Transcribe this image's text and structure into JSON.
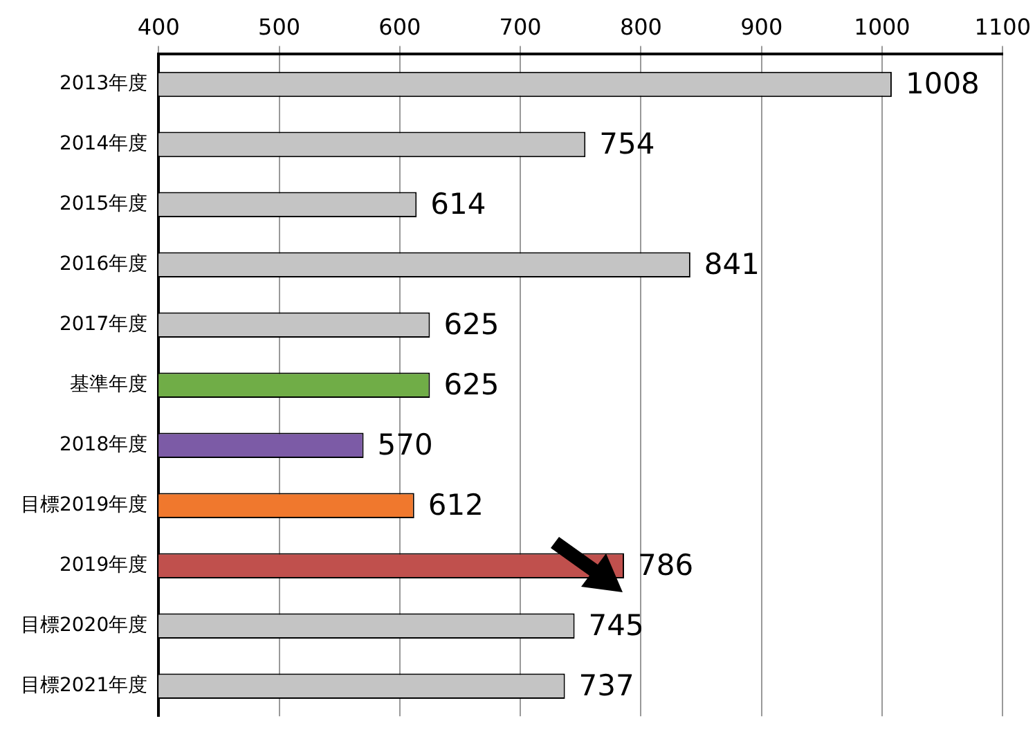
{
  "chart_data": {
    "type": "bar",
    "orientation": "horizontal",
    "categories": [
      "2013年度",
      "2014年度",
      "2015年度",
      "2016年度",
      "2017年度",
      "基準年度",
      "2018年度",
      "目標2019年度",
      "2019年度",
      "目標2020年度",
      "目標2021年度"
    ],
    "values": [
      1008,
      754,
      614,
      841,
      625,
      625,
      570,
      612,
      786,
      745,
      737
    ],
    "colors": [
      "#c4c4c4",
      "#c4c4c4",
      "#c4c4c4",
      "#c4c4c4",
      "#c4c4c4",
      "#70ad47",
      "#7c5ba6",
      "#f0782d",
      "#c0504d",
      "#c4c4c4",
      "#c4c4c4"
    ],
    "xlim": [
      400,
      1100
    ],
    "xticks": [
      400,
      500,
      600,
      700,
      800,
      900,
      1000,
      1100
    ],
    "grid": "x",
    "data_labels": true
  }
}
